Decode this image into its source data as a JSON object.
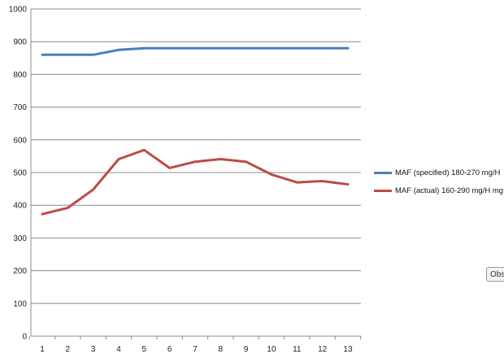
{
  "chart_data": {
    "type": "line",
    "x": [
      1,
      2,
      3,
      4,
      5,
      6,
      7,
      8,
      9,
      10,
      11,
      12,
      13
    ],
    "series": [
      {
        "name": "MAF (specified) 180-270 mg/H",
        "color": "#4a7ebb",
        "values": [
          860,
          860,
          860,
          875,
          880,
          880,
          880,
          880,
          880,
          880,
          880,
          880,
          880
        ]
      },
      {
        "name": "MAF (actual) 160-290 mg/H  mg",
        "color": "#be4b48",
        "values": [
          373,
          392,
          448,
          541,
          569,
          514,
          533,
          541,
          533,
          494,
          470,
          474,
          464
        ]
      }
    ],
    "ylim": [
      0,
      1000
    ],
    "yticks": [
      0,
      100,
      200,
      300,
      400,
      500,
      600,
      700,
      800,
      900,
      1000
    ],
    "xticks": [
      "1",
      "2",
      "3",
      "4",
      "5",
      "6",
      "7",
      "8",
      "9",
      "10",
      "11",
      "12",
      "13"
    ],
    "grid": true,
    "legend": "right",
    "title": "",
    "xlabel": "",
    "ylabel": ""
  },
  "tab_label": "Obs"
}
